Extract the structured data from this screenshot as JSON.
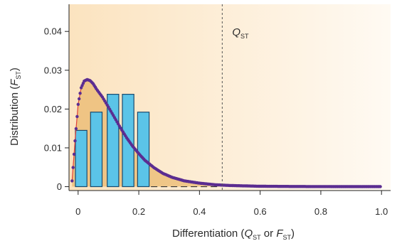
{
  "chart_data": {
    "type": "bar",
    "xlabel": {
      "prefix": "Differentiation (",
      "q": "Q",
      "q_sub": "ST",
      "or": " or ",
      "f": "F",
      "f_sub": "ST",
      "suffix": ")"
    },
    "ylabel": {
      "prefix": "Distribution (",
      "f": "F",
      "f_sub": "ST",
      "suffix": ")"
    },
    "xlim": [
      -0.03,
      1.03
    ],
    "ylim": [
      -0.001,
      0.047
    ],
    "x_ticks": [
      0,
      0.2,
      0.4,
      0.6,
      0.8,
      1.0
    ],
    "x_tick_labels": [
      "0",
      "0.2",
      "0.4",
      "0.6",
      "0.8",
      "1.0"
    ],
    "y_ticks": [
      0,
      0.01,
      0.02,
      0.03,
      0.04
    ],
    "y_tick_labels": [
      "0",
      "0.01",
      "0.02",
      "0.03",
      "0.04"
    ],
    "grid": false,
    "legend": "none",
    "bars": {
      "x": [
        0.01,
        0.06,
        0.115,
        0.165,
        0.215
      ],
      "width": 0.038,
      "values": [
        0.0145,
        0.0192,
        0.0238,
        0.0238,
        0.0192
      ]
    },
    "qst_line": {
      "x": 0.475,
      "label": "Q",
      "label_sub": "ST"
    },
    "fst_curve": {
      "x": [
        -0.02,
        -0.01,
        0,
        0.01,
        0.02,
        0.03,
        0.04,
        0.05,
        0.06,
        0.08,
        0.1,
        0.12,
        0.14,
        0.16,
        0.18,
        0.2,
        0.22,
        0.25,
        0.28,
        0.31,
        0.35,
        0.4,
        0.45,
        0.5,
        0.55,
        0.6,
        0.7,
        0.8,
        0.9,
        1.0
      ],
      "values": [
        0.0015,
        0.0118,
        0.0212,
        0.0255,
        0.0272,
        0.0276,
        0.0273,
        0.0265,
        0.0252,
        0.0231,
        0.0205,
        0.0178,
        0.0151,
        0.0126,
        0.0104,
        0.0085,
        0.0068,
        0.0049,
        0.0034,
        0.0024,
        0.0015,
        0.0009,
        0.0005,
        0.0003,
        0.0002,
        0.0001,
        5e-05,
        2e-05,
        1e-05,
        0.0
      ]
    },
    "colors": {
      "bar_fill": "#5bc4e8",
      "bar_stroke": "#1a4a6e",
      "curve_dots": "#5b2d91",
      "curve_line": "#e0413a",
      "area_fill": "#e9b66a",
      "bg_warm": "#fbe3bf",
      "bg_light": "#fffaf3",
      "qst_line": "#555555"
    }
  }
}
